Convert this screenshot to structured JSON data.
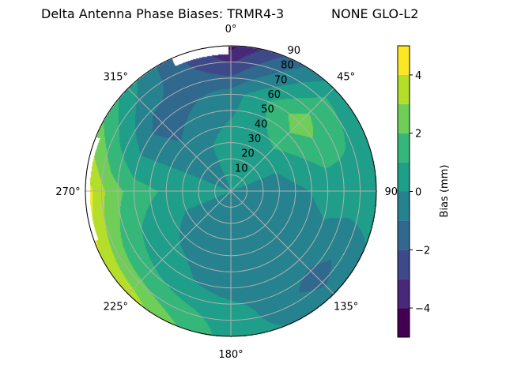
{
  "chart_data": {
    "type": "heatmap",
    "subtype": "polar-filled-contour",
    "title_left": "Delta Antenna Phase Biases: TRMR4-3",
    "title_right": "NONE GLO-L2",
    "angular_axis": {
      "direction": "clockwise",
      "zero_location": "top",
      "tick_labels": [
        "0°",
        "45°",
        "90°",
        "135°",
        "180°",
        "225°",
        "270°",
        "315°"
      ],
      "tick_values": [
        0,
        45,
        90,
        135,
        180,
        225,
        270,
        315
      ]
    },
    "radial_axis": {
      "range": [
        0,
        90
      ],
      "tick_values": [
        10,
        20,
        30,
        40,
        50,
        60,
        70,
        80,
        90
      ],
      "tick_labels": [
        "10",
        "20",
        "30",
        "40",
        "50",
        "60",
        "70",
        "80",
        "90"
      ]
    },
    "grid": true,
    "colorbar": {
      "label": "Bias (mm)",
      "range": [
        -5,
        5
      ],
      "levels": [
        -5,
        -4,
        -3,
        -2,
        -1,
        0,
        1,
        2,
        3,
        4,
        5
      ],
      "tick_values": [
        -4,
        -2,
        0,
        2,
        4
      ],
      "tick_labels": [
        "−4",
        "−2",
        "0",
        "2",
        "4"
      ],
      "colormap": "viridis",
      "colors": [
        "#440154",
        "#482878",
        "#3e4989",
        "#31688e",
        "#26828e",
        "#1f9e89",
        "#35b779",
        "#6ece58",
        "#b5de2b",
        "#fde725"
      ],
      "placement": "right"
    },
    "grid_values": {
      "radii": [
        0,
        30,
        60,
        75,
        90
      ],
      "azimuths": [
        0,
        45,
        90,
        135,
        180,
        225,
        270,
        315,
        360
      ],
      "bias_mm": [
        [
          0.0,
          0.5,
          -0.5,
          -2.5,
          -4.3
        ],
        [
          0.0,
          0.5,
          2.6,
          1.5,
          0.5
        ],
        [
          0.0,
          -0.5,
          0.3,
          0.6,
          0.5
        ],
        [
          0.0,
          -0.5,
          -0.5,
          -1.5,
          -0.5
        ],
        [
          0.0,
          -0.5,
          -0.5,
          0.5,
          0.5
        ],
        [
          0.0,
          -0.5,
          0.5,
          1.6,
          3.6
        ],
        [
          0.0,
          0.5,
          1.5,
          2.6,
          4.6
        ],
        [
          0.0,
          -0.5,
          -1.6,
          -0.5,
          0.5
        ],
        [
          0.0,
          0.5,
          -0.5,
          -2.5,
          -4.3
        ]
      ]
    }
  }
}
